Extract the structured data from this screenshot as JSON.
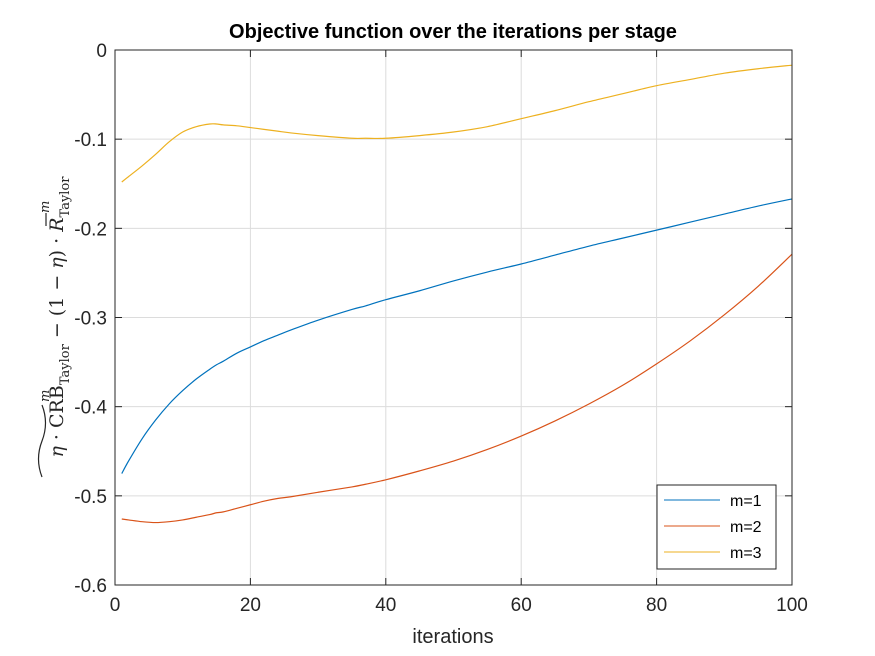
{
  "chart_data": {
    "type": "line",
    "title": "Objective function over the iterations per stage",
    "xlabel": "iterations",
    "ylabel": "η · CRB͠ᵐ_Taylor − (1 − η) · R̄ᵐ_Taylor",
    "xlim": [
      0,
      100
    ],
    "ylim": [
      -0.6,
      0
    ],
    "xticks": [
      0,
      20,
      40,
      60,
      80,
      100
    ],
    "yticks": [
      0,
      -0.1,
      -0.2,
      -0.3,
      -0.4,
      -0.5,
      -0.6
    ],
    "grid": true,
    "legend_position": "bottom-right",
    "x": [
      1,
      2,
      4,
      6,
      8,
      10,
      12,
      14,
      15,
      16,
      18,
      20,
      22,
      24,
      26,
      30,
      35,
      37,
      40,
      45,
      50,
      55,
      60,
      65,
      70,
      75,
      80,
      85,
      90,
      95,
      100
    ],
    "series": [
      {
        "name": "m=1",
        "color": "#0072BD",
        "values": [
          -0.475,
          -0.461,
          -0.436,
          -0.415,
          -0.397,
          -0.382,
          -0.369,
          -0.358,
          -0.353,
          -0.349,
          -0.34,
          -0.333,
          -0.326,
          -0.32,
          -0.314,
          -0.303,
          -0.291,
          -0.287,
          -0.28,
          -0.27,
          -0.259,
          -0.249,
          -0.24,
          -0.23,
          -0.22,
          -0.211,
          -0.202,
          -0.193,
          -0.184,
          -0.175,
          -0.167
        ]
      },
      {
        "name": "m=2",
        "color": "#D95319",
        "values": [
          -0.526,
          -0.527,
          -0.529,
          -0.53,
          -0.529,
          -0.527,
          -0.524,
          -0.521,
          -0.519,
          -0.518,
          -0.514,
          -0.51,
          -0.506,
          -0.503,
          -0.501,
          -0.496,
          -0.49,
          -0.487,
          -0.482,
          -0.472,
          -0.461,
          -0.448,
          -0.433,
          -0.416,
          -0.397,
          -0.376,
          -0.352,
          -0.326,
          -0.297,
          -0.265,
          -0.229
        ]
      },
      {
        "name": "m=3",
        "color": "#EDB120",
        "values": [
          -0.148,
          -0.142,
          -0.13,
          -0.117,
          -0.103,
          -0.092,
          -0.086,
          -0.083,
          -0.083,
          -0.084,
          -0.085,
          -0.087,
          -0.089,
          -0.091,
          -0.093,
          -0.096,
          -0.099,
          -0.099,
          -0.099,
          -0.096,
          -0.092,
          -0.086,
          -0.077,
          -0.068,
          -0.058,
          -0.049,
          -0.04,
          -0.033,
          -0.026,
          -0.021,
          -0.017
        ]
      }
    ]
  }
}
